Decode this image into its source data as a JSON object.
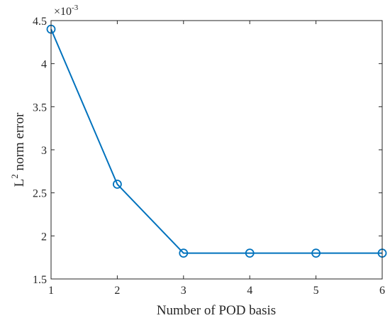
{
  "chart_data": {
    "type": "line",
    "xlabel": "Number of POD basis",
    "ylabel_base": "L",
    "ylabel_sup": "2",
    "ylabel_rest": " norm error",
    "y_exponent_base": "×10",
    "y_exponent_power": "-3",
    "xlim": [
      1,
      6
    ],
    "ylim": [
      1.5,
      4.5
    ],
    "x_ticks": [
      "1",
      "2",
      "3",
      "4",
      "5",
      "6"
    ],
    "y_ticks": [
      "1.5",
      "2",
      "2.5",
      "3",
      "3.5",
      "4",
      "4.5"
    ],
    "grid": false,
    "marker": "circle",
    "series": [
      {
        "color": "#0072BD",
        "x": [
          1,
          2,
          3,
          4,
          5,
          6
        ],
        "y": [
          4.4,
          2.6,
          1.8,
          1.8,
          1.8,
          1.8
        ]
      }
    ]
  }
}
